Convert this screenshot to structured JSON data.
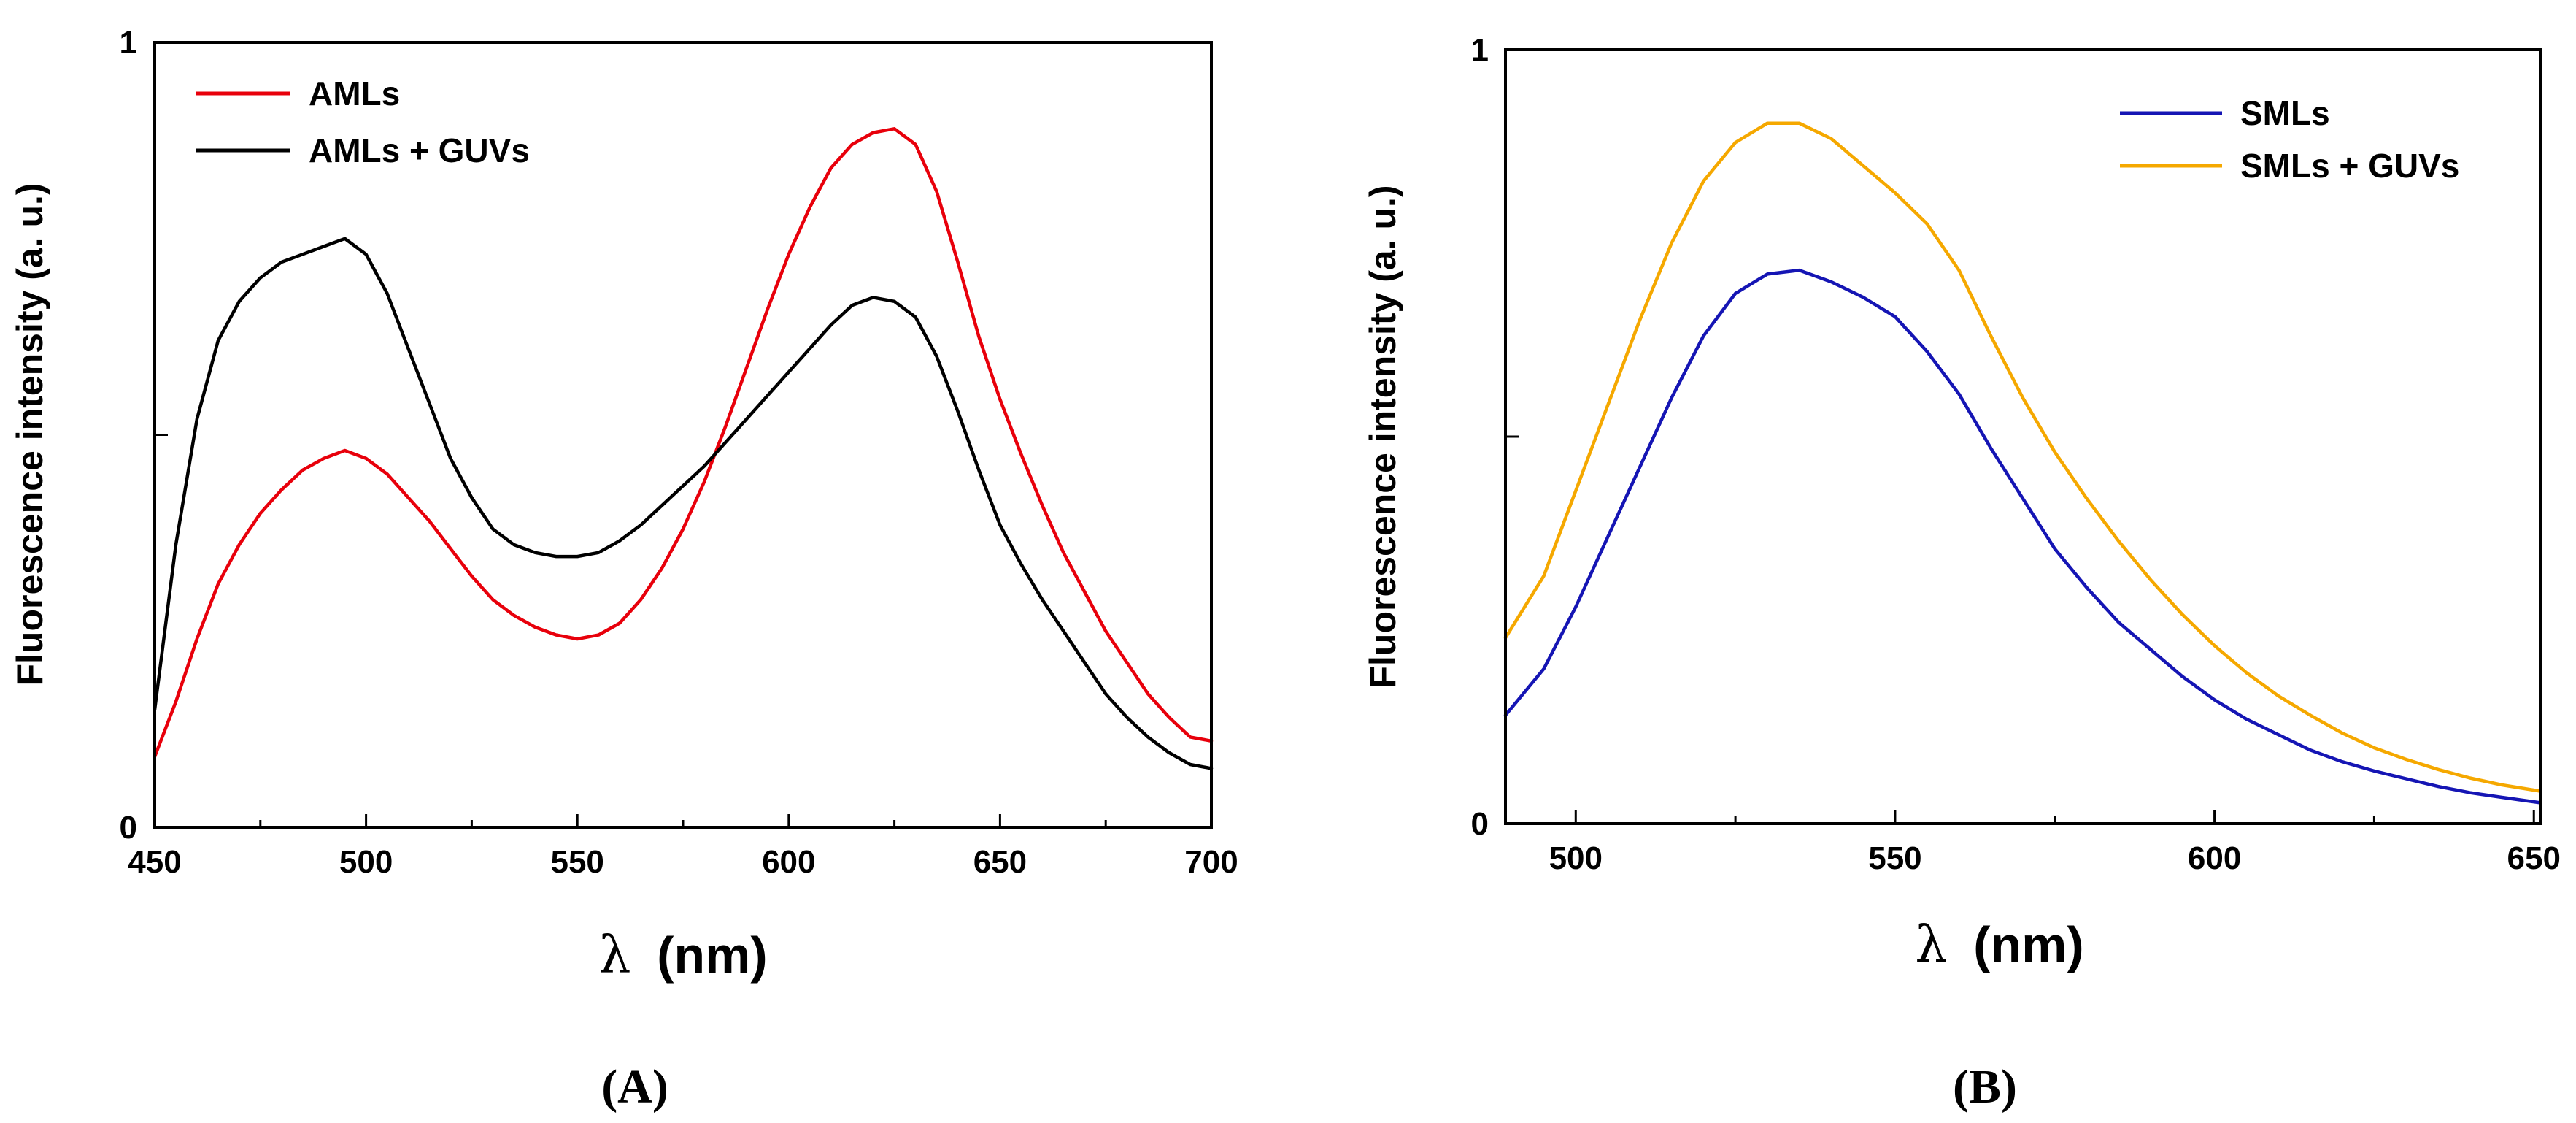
{
  "chart_data": [
    {
      "type": "line",
      "panel_label": "(A)",
      "xlabel_symbol": "λ",
      "xlabel_unit": "(nm)",
      "ylabel": "Fluorescence intensity (a. u.)",
      "xlim": [
        450,
        700
      ],
      "ylim": [
        0,
        1
      ],
      "x_ticks": [
        450,
        500,
        550,
        600,
        650,
        700
      ],
      "y_tick_labels": [
        {
          "value": 0,
          "label": "0"
        },
        {
          "value": 1,
          "label": "1"
        }
      ],
      "legend_position": "top-left",
      "series": [
        {
          "name": "AMLs",
          "color": "#e8000b",
          "x": [
            450,
            455,
            460,
            465,
            470,
            475,
            480,
            485,
            490,
            495,
            500,
            505,
            510,
            515,
            520,
            525,
            530,
            535,
            540,
            545,
            550,
            555,
            560,
            565,
            570,
            575,
            580,
            585,
            590,
            595,
            600,
            605,
            610,
            615,
            620,
            625,
            630,
            635,
            640,
            645,
            650,
            655,
            660,
            665,
            670,
            675,
            680,
            685,
            690,
            695,
            700
          ],
          "y": [
            0.09,
            0.16,
            0.24,
            0.31,
            0.36,
            0.4,
            0.43,
            0.455,
            0.47,
            0.48,
            0.47,
            0.45,
            0.42,
            0.39,
            0.355,
            0.32,
            0.29,
            0.27,
            0.255,
            0.245,
            0.24,
            0.245,
            0.26,
            0.29,
            0.33,
            0.38,
            0.44,
            0.51,
            0.585,
            0.66,
            0.73,
            0.79,
            0.84,
            0.87,
            0.885,
            0.89,
            0.87,
            0.81,
            0.72,
            0.625,
            0.545,
            0.475,
            0.41,
            0.35,
            0.3,
            0.25,
            0.21,
            0.17,
            0.14,
            0.115,
            0.11
          ]
        },
        {
          "name": "AMLs + GUVs",
          "color": "#000000",
          "x": [
            450,
            455,
            460,
            465,
            470,
            475,
            480,
            485,
            490,
            495,
            500,
            505,
            510,
            515,
            520,
            525,
            530,
            535,
            540,
            545,
            550,
            555,
            560,
            565,
            570,
            575,
            580,
            585,
            590,
            595,
            600,
            605,
            610,
            615,
            620,
            625,
            630,
            635,
            640,
            645,
            650,
            655,
            660,
            665,
            670,
            675,
            680,
            685,
            690,
            695,
            700
          ],
          "y": [
            0.15,
            0.36,
            0.52,
            0.62,
            0.67,
            0.7,
            0.72,
            0.73,
            0.74,
            0.75,
            0.73,
            0.68,
            0.61,
            0.54,
            0.47,
            0.42,
            0.38,
            0.36,
            0.35,
            0.345,
            0.345,
            0.35,
            0.365,
            0.385,
            0.41,
            0.435,
            0.46,
            0.49,
            0.52,
            0.55,
            0.58,
            0.61,
            0.64,
            0.665,
            0.675,
            0.67,
            0.65,
            0.6,
            0.53,
            0.455,
            0.385,
            0.335,
            0.29,
            0.25,
            0.21,
            0.17,
            0.14,
            0.115,
            0.095,
            0.08,
            0.075
          ]
        }
      ]
    },
    {
      "type": "line",
      "panel_label": "(B)",
      "xlabel_symbol": "λ",
      "xlabel_unit": "(nm)",
      "ylabel": "Fluorescence intensity (a. u.)",
      "xlim": [
        489,
        651
      ],
      "ylim": [
        0,
        1
      ],
      "x_ticks": [
        500,
        550,
        600,
        650
      ],
      "y_tick_labels": [
        {
          "value": 0,
          "label": "0"
        },
        {
          "value": 1,
          "label": "1"
        }
      ],
      "legend_position": "top-right",
      "series": [
        {
          "name": "SMLs",
          "color": "#1515b4",
          "x": [
            489,
            495,
            500,
            505,
            510,
            515,
            520,
            525,
            530,
            535,
            540,
            545,
            550,
            555,
            560,
            565,
            570,
            575,
            580,
            585,
            590,
            595,
            600,
            605,
            610,
            615,
            620,
            625,
            630,
            635,
            640,
            645,
            651
          ],
          "y": [
            0.14,
            0.2,
            0.28,
            0.37,
            0.46,
            0.55,
            0.63,
            0.685,
            0.71,
            0.715,
            0.7,
            0.68,
            0.655,
            0.61,
            0.555,
            0.485,
            0.42,
            0.355,
            0.305,
            0.26,
            0.225,
            0.19,
            0.16,
            0.135,
            0.115,
            0.095,
            0.08,
            0.068,
            0.058,
            0.048,
            0.04,
            0.034,
            0.027
          ]
        },
        {
          "name": "SMLs + GUVs",
          "color": "#f5a800",
          "x": [
            489,
            495,
            500,
            505,
            510,
            515,
            520,
            525,
            530,
            535,
            540,
            545,
            550,
            555,
            560,
            565,
            570,
            575,
            580,
            585,
            590,
            595,
            600,
            605,
            610,
            615,
            620,
            625,
            630,
            635,
            640,
            645,
            651
          ],
          "y": [
            0.24,
            0.32,
            0.43,
            0.54,
            0.65,
            0.75,
            0.83,
            0.88,
            0.905,
            0.905,
            0.885,
            0.85,
            0.815,
            0.775,
            0.715,
            0.63,
            0.55,
            0.48,
            0.42,
            0.365,
            0.315,
            0.27,
            0.23,
            0.195,
            0.165,
            0.14,
            0.117,
            0.098,
            0.083,
            0.07,
            0.059,
            0.05,
            0.042
          ]
        }
      ]
    }
  ]
}
